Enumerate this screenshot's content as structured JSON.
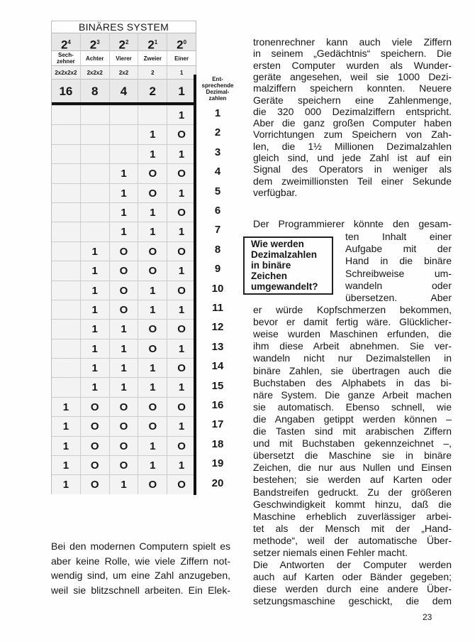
{
  "table": {
    "title": "BINÄRES SYSTEM",
    "powers": [
      {
        "base": "2",
        "exp": "4"
      },
      {
        "base": "2",
        "exp": "3"
      },
      {
        "base": "2",
        "exp": "2"
      },
      {
        "base": "2",
        "exp": "1"
      },
      {
        "base": "2",
        "exp": "0"
      }
    ],
    "names": [
      "Sech-\nzehner",
      "Achter",
      "Vierer",
      "Zweier",
      "Einer"
    ],
    "products": [
      "2x2x2x2",
      "2x2x2",
      "2x2",
      "2",
      "1"
    ],
    "values": [
      "16",
      "8",
      "4",
      "2",
      "1"
    ],
    "decimal_header": "Ent-\nsprechende\nDezimal-\nzahlen",
    "rows": [
      {
        "bits": [
          "",
          "",
          "",
          "",
          "1"
        ],
        "dec": "1"
      },
      {
        "bits": [
          "",
          "",
          "",
          "1",
          "O"
        ],
        "dec": "2"
      },
      {
        "bits": [
          "",
          "",
          "",
          "1",
          "1"
        ],
        "dec": "3"
      },
      {
        "bits": [
          "",
          "",
          "1",
          "O",
          "O"
        ],
        "dec": "4"
      },
      {
        "bits": [
          "",
          "",
          "1",
          "O",
          "1"
        ],
        "dec": "5"
      },
      {
        "bits": [
          "",
          "",
          "1",
          "1",
          "O"
        ],
        "dec": "6"
      },
      {
        "bits": [
          "",
          "",
          "1",
          "1",
          "1"
        ],
        "dec": "7"
      },
      {
        "bits": [
          "",
          "1",
          "O",
          "O",
          "O"
        ],
        "dec": "8"
      },
      {
        "bits": [
          "",
          "1",
          "O",
          "O",
          "1"
        ],
        "dec": "9"
      },
      {
        "bits": [
          "",
          "1",
          "O",
          "1",
          "O"
        ],
        "dec": "10"
      },
      {
        "bits": [
          "",
          "1",
          "O",
          "1",
          "1"
        ],
        "dec": "11"
      },
      {
        "bits": [
          "",
          "1",
          "1",
          "O",
          "O"
        ],
        "dec": "12"
      },
      {
        "bits": [
          "",
          "1",
          "1",
          "O",
          "1"
        ],
        "dec": "13"
      },
      {
        "bits": [
          "",
          "1",
          "1",
          "1",
          "O"
        ],
        "dec": "14"
      },
      {
        "bits": [
          "",
          "1",
          "1",
          "1",
          "1"
        ],
        "dec": "15"
      },
      {
        "bits": [
          "1",
          "O",
          "O",
          "O",
          "O"
        ],
        "dec": "16"
      },
      {
        "bits": [
          "1",
          "O",
          "O",
          "O",
          "1"
        ],
        "dec": "17"
      },
      {
        "bits": [
          "1",
          "O",
          "O",
          "1",
          "O"
        ],
        "dec": "18"
      },
      {
        "bits": [
          "1",
          "O",
          "O",
          "1",
          "1"
        ],
        "dec": "19"
      },
      {
        "bits": [
          "1",
          "O",
          "1",
          "O",
          "O"
        ],
        "dec": "20"
      }
    ]
  },
  "left_text": [
    "Bei den modernen Computern spielt es",
    "aber keine Rolle, wie viele Ziffern not-",
    "wendig sind, um eine Zahl anzugeben,",
    "weil sie blitzschnell arbeiten. Ein Elek-"
  ],
  "right_para1": [
    "tronenrechner kann auch viele Ziffern",
    "in seinem „Gedächtnis“ speichern. Die",
    "ersten Computer wurden als Wunder-",
    "geräte angesehen, weil sie 1000 Dezi-",
    "malziffern speichern konnten. Neuere",
    "Geräte speichern eine Zahlenmenge,",
    "die 320 000 Dezimalziffern entspricht.",
    "Aber die ganz großen Computer haben",
    "Vorrichtungen zum Speichern von Zah-",
    "len, die 1½ Millionen Dezimalzahlen",
    "gleich sind, und jede Zahl ist auf ein",
    "Signal des Operators in weniger als",
    "dem zweimillionsten Teil einer Sekunde",
    "verfügbar."
  ],
  "right_para2_first": "Der Programmierer könnte den gesam-",
  "right_para2_wrap": [
    "ten Inhalt einer",
    "Aufgabe mit der",
    "Hand in die binäre",
    "Schreibweise um-",
    "wandeln oder",
    "übersetzen. Aber"
  ],
  "right_para2_rest": [
    "er würde Kopfschmerzen bekommen,",
    "bevor er damit fertig wäre. Glücklicher-",
    "weise wurden Maschinen erfunden, die",
    "ihm diese Arbeit abnehmen. Sie ver-",
    "wandeln nicht nur Dezimalstellen in",
    "binäre Zahlen, sie übertragen auch die",
    "Buchstaben des Alphabets in das bi-",
    "näre System. Die ganze Arbeit machen",
    "sie automatisch. Ebenso schnell, wie",
    "die Angaben getippt werden können –",
    "die Tasten sind mit arabischen Ziffern",
    "und mit Buchstaben gekennzeichnet –,",
    "übersetzt die Maschine sie in binäre",
    "Zeichen, die nur aus Nullen und Einsen",
    "bestehen; sie werden auf Karten oder",
    "Bandstreifen gedruckt. Zu der größeren",
    "Geschwindigkeit kommt hinzu, daß die",
    "Maschine erheblich zuverlässiger arbei-",
    "tet als der Mensch mit der „Hand-",
    "methode“, weil der automatische Über-",
    "setzer niemals einen Fehler macht.",
    "Die Antworten der Computer werden",
    "auch auf Karten oder Bänder gegeben;",
    "diese werden durch eine andere Über-",
    "setzungsmaschine geschickt, die dem"
  ],
  "question_box": [
    "Wie werden",
    "Dezimalzahlen",
    "in binäre",
    "Zeichen",
    "umgewandelt?"
  ],
  "page_number": "23"
}
